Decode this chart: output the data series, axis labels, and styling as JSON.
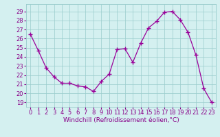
{
  "hours": [
    0,
    1,
    2,
    3,
    4,
    5,
    6,
    7,
    8,
    9,
    10,
    11,
    12,
    13,
    14,
    15,
    16,
    17,
    18,
    19,
    20,
    21,
    22,
    23
  ],
  "values": [
    26.5,
    24.7,
    22.8,
    21.8,
    21.1,
    21.1,
    20.8,
    20.7,
    20.2,
    21.3,
    22.1,
    24.8,
    24.9,
    23.4,
    25.5,
    27.2,
    27.9,
    28.9,
    29.0,
    28.1,
    26.7,
    24.2,
    20.5,
    19.0
  ],
  "line_color": "#990099",
  "marker": "+",
  "marker_size": 4,
  "marker_linewidth": 1.0,
  "line_width": 0.9,
  "bg_color": "#d4f0f0",
  "grid_color": "#99cccc",
  "ylabel_ticks": [
    19,
    20,
    21,
    22,
    23,
    24,
    25,
    26,
    27,
    28,
    29
  ],
  "ylim": [
    18.5,
    29.8
  ],
  "xlim": [
    -0.5,
    23.5
  ],
  "xlabel": "Windchill (Refroidissement éolien,°C)",
  "xlabel_fontsize": 6.5,
  "tick_fontsize": 6,
  "tick_color": "#880088",
  "label_color": "#880088",
  "spine_color": "#99cccc"
}
